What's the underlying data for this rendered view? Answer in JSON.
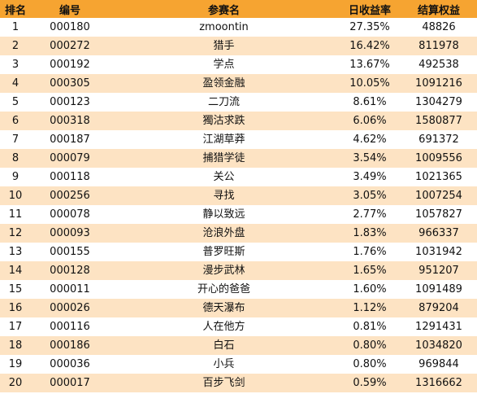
{
  "headers": {
    "rank": "排名",
    "code": "编号",
    "name": "参赛名",
    "daily_return": "日收益率",
    "settled_equity": "结算权益"
  },
  "colors": {
    "header_bg": "#f6a431",
    "stripe_bg": "#fde3c3",
    "row_bg": "#ffffff"
  },
  "rows": [
    {
      "rank": "1",
      "code": "000180",
      "name": "zmoontin",
      "daily_return": "27.35%",
      "settled_equity": "48826"
    },
    {
      "rank": "2",
      "code": "000272",
      "name": "猎手",
      "daily_return": "16.42%",
      "settled_equity": "811978"
    },
    {
      "rank": "3",
      "code": "000192",
      "name": "学点",
      "daily_return": "13.67%",
      "settled_equity": "492538"
    },
    {
      "rank": "4",
      "code": "000305",
      "name": "盈领金融",
      "daily_return": "10.05%",
      "settled_equity": "1091216"
    },
    {
      "rank": "5",
      "code": "000123",
      "name": "二刀流",
      "daily_return": "8.61%",
      "settled_equity": "1304279"
    },
    {
      "rank": "6",
      "code": "000318",
      "name": "獨沽求跌",
      "daily_return": "6.06%",
      "settled_equity": "1580877"
    },
    {
      "rank": "7",
      "code": "000187",
      "name": "江湖草莽",
      "daily_return": "4.62%",
      "settled_equity": "691372"
    },
    {
      "rank": "8",
      "code": "000079",
      "name": "捕猎学徒",
      "daily_return": "3.54%",
      "settled_equity": "1009556"
    },
    {
      "rank": "9",
      "code": "000118",
      "name": "关公",
      "daily_return": "3.49%",
      "settled_equity": "1021365"
    },
    {
      "rank": "10",
      "code": "000256",
      "name": "寻找",
      "daily_return": "3.05%",
      "settled_equity": "1007254"
    },
    {
      "rank": "11",
      "code": "000078",
      "name": "静以致远",
      "daily_return": "2.77%",
      "settled_equity": "1057827"
    },
    {
      "rank": "12",
      "code": "000093",
      "name": "沧浪外盘",
      "daily_return": "1.83%",
      "settled_equity": "966337"
    },
    {
      "rank": "13",
      "code": "000155",
      "name": "普罗旺斯",
      "daily_return": "1.76%",
      "settled_equity": "1031942"
    },
    {
      "rank": "14",
      "code": "000128",
      "name": "漫步武林",
      "daily_return": "1.65%",
      "settled_equity": "951207"
    },
    {
      "rank": "15",
      "code": "000011",
      "name": "开心的爸爸",
      "daily_return": "1.60%",
      "settled_equity": "1091489"
    },
    {
      "rank": "16",
      "code": "000026",
      "name": "德天瀑布",
      "daily_return": "1.12%",
      "settled_equity": "879204"
    },
    {
      "rank": "17",
      "code": "000116",
      "name": "人在他方",
      "daily_return": "0.81%",
      "settled_equity": "1291431"
    },
    {
      "rank": "18",
      "code": "000186",
      "name": "白石",
      "daily_return": "0.80%",
      "settled_equity": "1034820"
    },
    {
      "rank": "19",
      "code": "000036",
      "name": "小兵",
      "daily_return": "0.80%",
      "settled_equity": "969844"
    },
    {
      "rank": "20",
      "code": "000017",
      "name": "百步飞剑",
      "daily_return": "0.59%",
      "settled_equity": "1316662"
    }
  ]
}
